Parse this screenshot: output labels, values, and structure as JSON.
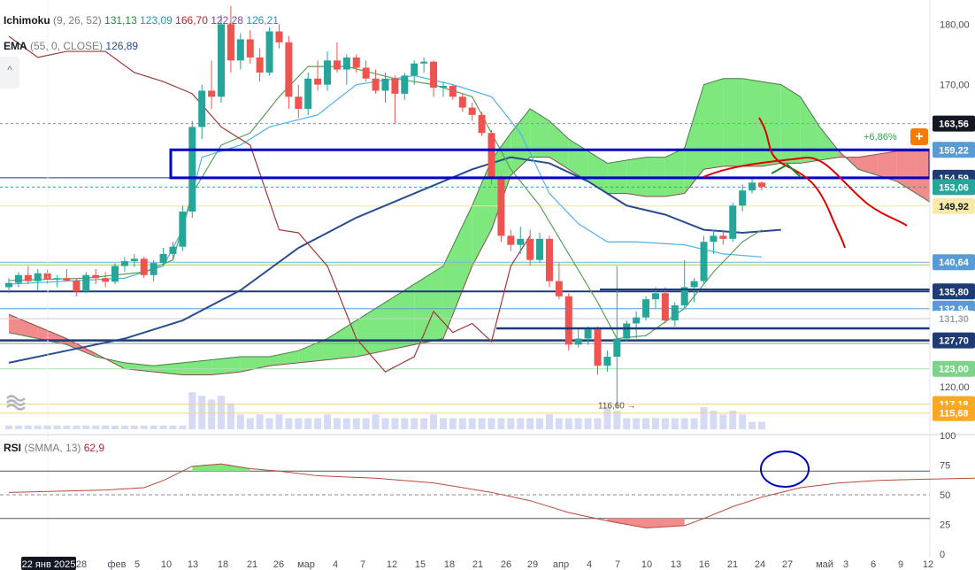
{
  "legend": {
    "ichimoku_name": "Ichimoku",
    "ichimoku_params": "(9, 26, 52)",
    "ichimoku_values": [
      "131,13",
      "123,09",
      "166,70",
      "122,28",
      "126,21"
    ],
    "ema_name": "EMA",
    "ema_params": "(55, 0, CLOSE)",
    "ema_value": "126,89",
    "rsi_name": "RSI",
    "rsi_params": "(SMMA, 13)",
    "rsi_value": "62,9"
  },
  "colors": {
    "up": "#26a69a",
    "down": "#ef5350",
    "cloud_bull": "#7ee87e",
    "cloud_bear": "#f28b8b",
    "ema": "#2a4d8f",
    "annotation_red": "#e00000",
    "annotation_blue": "#0000c8",
    "annotation_green": "#1a8a1a"
  },
  "header": {
    "change_pct": "+6,86%",
    "add_icon": "plus-icon"
  },
  "price_axis": {
    "ticks": [
      "180,00",
      "170,00",
      "120,00"
    ],
    "tag_labels": [
      {
        "text": "163,56",
        "bg": "#131722",
        "fg": "#ffffff"
      },
      {
        "text": "159,22",
        "bg": "#5b9bd5",
        "fg": "#ffffff"
      },
      {
        "text": "154,59",
        "bg": "#1f3b73",
        "fg": "#ffffff"
      },
      {
        "text": "153,06",
        "bg": "#26a69a",
        "fg": "#ffffff"
      },
      {
        "text": "149,92",
        "bg": "#f7e9a8",
        "fg": "#131722"
      },
      {
        "text": "140,64",
        "bg": "#5b9bd5",
        "fg": "#ffffff"
      },
      {
        "text": "135,80",
        "bg": "#1f3b73",
        "fg": "#ffffff"
      },
      {
        "text": "132,94",
        "bg": "#5b9bd5",
        "fg": "#ffffff"
      },
      {
        "text": "131,30",
        "bg": "#ffffff",
        "fg": "#9aa0ad"
      },
      {
        "text": "127,70",
        "bg": "#1f3b73",
        "fg": "#ffffff"
      },
      {
        "text": "123,00",
        "bg": "#7ed38a",
        "fg": "#ffffff"
      },
      {
        "text": "117,18",
        "bg": "#f9a825",
        "fg": "#ffffff"
      },
      {
        "text": "115,68",
        "bg": "#f9a825",
        "fg": "#ffffff"
      }
    ]
  },
  "low_marker": "116,60",
  "rsi_axis": {
    "ticks": [
      "100",
      "75",
      "50",
      "25",
      "0"
    ]
  },
  "time_axis": {
    "labels": [
      "22 янв 2025",
      "28",
      "фев",
      "5",
      "10",
      "13",
      "18",
      "21",
      "26",
      "мар",
      "4",
      "7",
      "12",
      "15",
      "18",
      "21",
      "26",
      "29",
      "апр",
      "4",
      "7",
      "10",
      "13",
      "16",
      "21",
      "24",
      "27",
      "май",
      "3",
      "6",
      "9",
      "12"
    ]
  },
  "chart_data": {
    "type": "candlestick",
    "ylim": [
      113,
      184
    ],
    "rsi_ylim": [
      0,
      100
    ],
    "candles": [
      {
        "o": 136.5,
        "h": 138.0,
        "l": 135.5,
        "c": 137.2
      },
      {
        "o": 137.2,
        "h": 139.0,
        "l": 136.5,
        "c": 138.5
      },
      {
        "o": 138.5,
        "h": 140.0,
        "l": 137.0,
        "c": 137.5
      },
      {
        "o": 137.5,
        "h": 139.5,
        "l": 136.0,
        "c": 138.8
      },
      {
        "o": 138.8,
        "h": 139.5,
        "l": 137.0,
        "c": 137.8
      },
      {
        "o": 137.8,
        "h": 138.5,
        "l": 136.5,
        "c": 138.0
      },
      {
        "o": 138.0,
        "h": 139.5,
        "l": 137.5,
        "c": 137.6
      },
      {
        "o": 137.6,
        "h": 138.0,
        "l": 135.0,
        "c": 135.8
      },
      {
        "o": 135.8,
        "h": 139.0,
        "l": 135.5,
        "c": 138.5
      },
      {
        "o": 138.5,
        "h": 139.5,
        "l": 137.0,
        "c": 138.0
      },
      {
        "o": 138.0,
        "h": 139.0,
        "l": 136.5,
        "c": 137.4
      },
      {
        "o": 137.4,
        "h": 140.5,
        "l": 137.0,
        "c": 140.0
      },
      {
        "o": 140.0,
        "h": 141.5,
        "l": 139.0,
        "c": 140.8
      },
      {
        "o": 140.8,
        "h": 142.0,
        "l": 139.8,
        "c": 141.2
      },
      {
        "o": 141.2,
        "h": 141.5,
        "l": 138.0,
        "c": 138.5
      },
      {
        "o": 138.5,
        "h": 141.0,
        "l": 137.5,
        "c": 140.5
      },
      {
        "o": 140.5,
        "h": 143.0,
        "l": 140.0,
        "c": 142.0
      },
      {
        "o": 142.0,
        "h": 144.0,
        "l": 141.0,
        "c": 143.2
      },
      {
        "o": 143.2,
        "h": 150.0,
        "l": 142.5,
        "c": 149.0
      },
      {
        "o": 149.0,
        "h": 164.0,
        "l": 148.0,
        "c": 163.0
      },
      {
        "o": 163.0,
        "h": 170.0,
        "l": 161.0,
        "c": 169.0
      },
      {
        "o": 169.0,
        "h": 174.0,
        "l": 166.0,
        "c": 168.0
      },
      {
        "o": 168.0,
        "h": 181.5,
        "l": 167.0,
        "c": 180.0
      },
      {
        "o": 180.0,
        "h": 183.0,
        "l": 172.0,
        "c": 174.0
      },
      {
        "o": 174.0,
        "h": 178.5,
        "l": 172.5,
        "c": 177.5
      },
      {
        "o": 177.5,
        "h": 179.0,
        "l": 173.5,
        "c": 174.5
      },
      {
        "o": 174.5,
        "h": 176.0,
        "l": 170.5,
        "c": 172.0
      },
      {
        "o": 172.0,
        "h": 179.5,
        "l": 171.5,
        "c": 178.8
      },
      {
        "o": 178.8,
        "h": 180.0,
        "l": 176.0,
        "c": 177.0
      },
      {
        "o": 177.0,
        "h": 178.0,
        "l": 166.0,
        "c": 168.0
      },
      {
        "o": 168.0,
        "h": 170.0,
        "l": 164.5,
        "c": 166.0
      },
      {
        "o": 166.0,
        "h": 172.0,
        "l": 165.0,
        "c": 171.0
      },
      {
        "o": 171.0,
        "h": 174.0,
        "l": 169.0,
        "c": 170.0
      },
      {
        "o": 170.0,
        "h": 175.5,
        "l": 169.0,
        "c": 174.0
      },
      {
        "o": 174.0,
        "h": 177.0,
        "l": 172.0,
        "c": 172.5
      },
      {
        "o": 172.5,
        "h": 175.0,
        "l": 170.0,
        "c": 174.5
      },
      {
        "o": 174.5,
        "h": 175.0,
        "l": 172.0,
        "c": 172.8
      },
      {
        "o": 172.8,
        "h": 174.0,
        "l": 170.5,
        "c": 171.0
      },
      {
        "o": 171.0,
        "h": 172.5,
        "l": 168.5,
        "c": 169.0
      },
      {
        "o": 169.0,
        "h": 172.0,
        "l": 167.0,
        "c": 171.0
      },
      {
        "o": 171.0,
        "h": 171.5,
        "l": 163.5,
        "c": 168.5
      },
      {
        "o": 168.5,
        "h": 172.0,
        "l": 167.5,
        "c": 171.5
      },
      {
        "o": 171.5,
        "h": 174.0,
        "l": 170.0,
        "c": 173.5
      },
      {
        "o": 173.5,
        "h": 174.5,
        "l": 172.0,
        "c": 173.8
      },
      {
        "o": 173.8,
        "h": 174.0,
        "l": 168.0,
        "c": 169.5
      },
      {
        "o": 169.5,
        "h": 170.5,
        "l": 168.0,
        "c": 169.8
      },
      {
        "o": 169.8,
        "h": 170.0,
        "l": 167.5,
        "c": 168.0
      },
      {
        "o": 168.0,
        "h": 168.5,
        "l": 165.5,
        "c": 166.2
      },
      {
        "o": 166.2,
        "h": 167.0,
        "l": 164.0,
        "c": 165.0
      },
      {
        "o": 165.0,
        "h": 165.5,
        "l": 161.5,
        "c": 162.0
      },
      {
        "o": 162.0,
        "h": 162.5,
        "l": 153.5,
        "c": 154.5
      },
      {
        "o": 154.5,
        "h": 155.0,
        "l": 144.0,
        "c": 145.0
      },
      {
        "o": 145.0,
        "h": 146.0,
        "l": 142.5,
        "c": 143.5
      },
      {
        "o": 143.5,
        "h": 146.5,
        "l": 142.0,
        "c": 144.5
      },
      {
        "o": 144.5,
        "h": 146.0,
        "l": 140.0,
        "c": 141.0
      },
      {
        "o": 141.0,
        "h": 145.5,
        "l": 140.5,
        "c": 144.5
      },
      {
        "o": 144.5,
        "h": 145.0,
        "l": 136.5,
        "c": 137.5
      },
      {
        "o": 137.5,
        "h": 140.5,
        "l": 134.5,
        "c": 135.0
      },
      {
        "o": 135.0,
        "h": 135.5,
        "l": 126.0,
        "c": 127.0
      },
      {
        "o": 127.0,
        "h": 129.5,
        "l": 126.5,
        "c": 128.0
      },
      {
        "o": 128.0,
        "h": 130.0,
        "l": 127.0,
        "c": 129.5
      },
      {
        "o": 129.5,
        "h": 130.0,
        "l": 122.0,
        "c": 123.5
      },
      {
        "o": 123.5,
        "h": 126.0,
        "l": 122.5,
        "c": 125.0
      },
      {
        "o": 125.0,
        "h": 140.0,
        "l": 116.6,
        "c": 128.0
      },
      {
        "o": 128.0,
        "h": 131.0,
        "l": 127.5,
        "c": 130.5
      },
      {
        "o": 130.5,
        "h": 132.5,
        "l": 128.0,
        "c": 131.5
      },
      {
        "o": 131.5,
        "h": 135.0,
        "l": 131.0,
        "c": 134.5
      },
      {
        "o": 134.5,
        "h": 136.5,
        "l": 133.0,
        "c": 135.5
      },
      {
        "o": 135.5,
        "h": 136.5,
        "l": 130.5,
        "c": 131.0
      },
      {
        "o": 131.0,
        "h": 134.0,
        "l": 130.0,
        "c": 133.5
      },
      {
        "o": 133.5,
        "h": 141.0,
        "l": 133.0,
        "c": 136.5
      },
      {
        "o": 136.5,
        "h": 138.0,
        "l": 134.0,
        "c": 137.5
      },
      {
        "o": 137.5,
        "h": 145.0,
        "l": 137.0,
        "c": 144.0
      },
      {
        "o": 144.0,
        "h": 146.0,
        "l": 142.0,
        "c": 145.0
      },
      {
        "o": 145.0,
        "h": 146.0,
        "l": 143.5,
        "c": 144.5
      },
      {
        "o": 144.5,
        "h": 150.5,
        "l": 144.0,
        "c": 150.0
      },
      {
        "o": 150.0,
        "h": 153.5,
        "l": 149.0,
        "c": 152.5
      },
      {
        "o": 152.5,
        "h": 154.5,
        "l": 152.0,
        "c": 153.8
      },
      {
        "o": 153.8,
        "h": 154.0,
        "l": 152.5,
        "c": 153.1
      }
    ],
    "ichimoku_tenkan": [
      [
        0,
        137.6
      ],
      [
        8,
        138.0
      ],
      [
        14,
        139.0
      ],
      [
        17,
        141.0
      ],
      [
        19,
        152.0
      ],
      [
        22,
        160.0
      ],
      [
        25,
        162.0
      ],
      [
        28,
        168.0
      ],
      [
        31,
        173.0
      ],
      [
        35,
        173.0
      ],
      [
        40,
        171.0
      ],
      [
        44,
        170.0
      ],
      [
        48,
        168.0
      ],
      [
        52,
        156.0
      ],
      [
        55,
        150.0
      ],
      [
        58,
        142.0
      ],
      [
        61,
        134.0
      ],
      [
        63,
        128.0
      ],
      [
        66,
        128.5
      ],
      [
        70,
        133.0
      ],
      [
        73,
        139.0
      ],
      [
        76,
        144.0
      ],
      [
        78,
        146.0
      ]
    ],
    "ichimoku_kijun": [
      [
        0,
        137.0
      ],
      [
        12,
        138.0
      ],
      [
        16,
        140.0
      ],
      [
        18,
        146.0
      ],
      [
        20,
        158.0
      ],
      [
        24,
        160.0
      ],
      [
        27,
        163.0
      ],
      [
        32,
        165.0
      ],
      [
        36,
        170.0
      ],
      [
        42,
        171.5
      ],
      [
        46,
        170.0
      ],
      [
        50,
        168.0
      ],
      [
        53,
        162.0
      ],
      [
        56,
        152.0
      ],
      [
        59,
        147.0
      ],
      [
        62,
        144.0
      ],
      [
        65,
        144.0
      ],
      [
        70,
        143.5
      ],
      [
        74,
        142.0
      ],
      [
        78,
        141.5
      ]
    ],
    "ichimoku_chikou": [
      [
        0,
        178.0
      ],
      [
        3,
        174.5
      ],
      [
        6,
        175.5
      ],
      [
        10,
        175.5
      ],
      [
        13,
        172.0
      ],
      [
        16,
        170.5
      ],
      [
        19,
        168.5
      ],
      [
        22,
        163.0
      ],
      [
        25,
        160.0
      ],
      [
        28,
        146.0
      ],
      [
        30,
        145.5
      ],
      [
        33,
        140.0
      ],
      [
        36,
        128.0
      ],
      [
        39,
        122.5
      ],
      [
        42,
        125.0
      ],
      [
        44,
        132.5
      ],
      [
        46,
        129.0
      ],
      [
        48,
        130.5
      ],
      [
        50,
        127.5
      ],
      [
        52,
        140.0
      ],
      [
        54,
        145.0
      ]
    ],
    "cloud": {
      "x": [
        0,
        3,
        6,
        9,
        12,
        15,
        18,
        21,
        24,
        27,
        30,
        33,
        36,
        39,
        42,
        45,
        48,
        50,
        52,
        54,
        56,
        58,
        60,
        62,
        64,
        66,
        68,
        70,
        72,
        74,
        76,
        78,
        80,
        82,
        84,
        86,
        88,
        90,
        92,
        94,
        96,
        98,
        100,
        102,
        104
      ],
      "span_a": [
        129.0,
        128.0,
        127.0,
        125.0,
        124.0,
        123.5,
        124.0,
        124.5,
        125.0,
        125.0,
        126.0,
        128.0,
        131.0,
        134.0,
        137.0,
        140.0,
        150.0,
        157.5,
        162.0,
        166.0,
        164.0,
        161.0,
        159.0,
        157.0,
        157.5,
        158.0,
        158.0,
        159.5,
        170.0,
        171.0,
        171.0,
        170.5,
        170.0,
        168.0,
        163.0,
        159.0,
        156.0,
        155.0,
        154.0,
        152.0,
        150.0,
        146.0,
        140.0,
        137.0,
        136.0
      ],
      "span_b": [
        132.0,
        130.0,
        128.0,
        125.5,
        123.0,
        122.5,
        122.0,
        122.0,
        122.5,
        123.5,
        124.0,
        124.5,
        125.0,
        126.0,
        127.0,
        128.0,
        140.0,
        146.0,
        155.0,
        158.0,
        158.0,
        156.0,
        154.0,
        152.0,
        152.0,
        151.5,
        151.5,
        152.0,
        156.0,
        156.5,
        156.5,
        156.5,
        157.0,
        157.0,
        157.5,
        158.0,
        158.0,
        158.5,
        159.0,
        159.0,
        159.0,
        149.0,
        148.0,
        148.0,
        148.0
      ]
    },
    "ema": [
      [
        0,
        124.0
      ],
      [
        6,
        126.0
      ],
      [
        12,
        128.0
      ],
      [
        18,
        131.0
      ],
      [
        24,
        136.0
      ],
      [
        30,
        143.0
      ],
      [
        36,
        148.0
      ],
      [
        42,
        152.0
      ],
      [
        48,
        156.0
      ],
      [
        52,
        158.0
      ],
      [
        56,
        157.0
      ],
      [
        60,
        154.0
      ],
      [
        64,
        150.0
      ],
      [
        68,
        148.5
      ],
      [
        72,
        146.0
      ],
      [
        76,
        145.5
      ],
      [
        80,
        146.0
      ]
    ],
    "volume": [
      1,
      1,
      1,
      1,
      1,
      1,
      1,
      1,
      1,
      1,
      1,
      1,
      1,
      1,
      1,
      1,
      1,
      1,
      1,
      10,
      9,
      8,
      9,
      7,
      4,
      3,
      4,
      3,
      4,
      3,
      3,
      3,
      3,
      4,
      3,
      3,
      3,
      3,
      4,
      3,
      3,
      3,
      3,
      3,
      4,
      3,
      3,
      3,
      3,
      3,
      3,
      3,
      3,
      3,
      3,
      3,
      4,
      3,
      3,
      3,
      3,
      3,
      6,
      5,
      3,
      3,
      3,
      3,
      3,
      3,
      3,
      3,
      6,
      5,
      4,
      5,
      4,
      2,
      2
    ],
    "rsi": [
      [
        0,
        52
      ],
      [
        5,
        53
      ],
      [
        10,
        54
      ],
      [
        14,
        56
      ],
      [
        16,
        62
      ],
      [
        19,
        74
      ],
      [
        22,
        76
      ],
      [
        25,
        72
      ],
      [
        28,
        70
      ],
      [
        32,
        66
      ],
      [
        38,
        64
      ],
      [
        44,
        60
      ],
      [
        50,
        52
      ],
      [
        54,
        45
      ],
      [
        58,
        35
      ],
      [
        62,
        28
      ],
      [
        66,
        22
      ],
      [
        70,
        24
      ],
      [
        72,
        30
      ],
      [
        75,
        40
      ],
      [
        78,
        48
      ],
      [
        82,
        56
      ],
      [
        86,
        60
      ],
      [
        90,
        62
      ],
      [
        94,
        63
      ],
      [
        100,
        64
      ],
      [
        104,
        65
      ],
      [
        106,
        66
      ],
      [
        108,
        67
      ],
      [
        110,
        66
      ]
    ],
    "rsi_levels": [
      70,
      50,
      30
    ],
    "hlines": [
      {
        "v": 163.56,
        "color": "#8e9299",
        "dash": true
      },
      {
        "v": 154.59,
        "color": "#1f3b73"
      },
      {
        "v": 153.06,
        "color": "#26a69a",
        "dash": true
      },
      {
        "v": 149.92,
        "color": "#f0e3a0"
      },
      {
        "v": 140.64,
        "color": "#6fb3e0"
      },
      {
        "v": 140.2,
        "color": "#a7c957"
      },
      {
        "v": 135.8,
        "color": "#1f3b73",
        "width": 2
      },
      {
        "v": 132.94,
        "color": "#5b9bd5"
      },
      {
        "v": 131.3,
        "color": "#c8cbd2"
      },
      {
        "v": 127.7,
        "color": "#1f3b73",
        "width": 2.5
      },
      {
        "v": 127.2,
        "color": "#8e9299"
      },
      {
        "v": 123.0,
        "color": "#a7e0b0"
      },
      {
        "v": 117.18,
        "color": "#f9d57a"
      },
      {
        "v": 115.68,
        "color": "#f9d57a"
      }
    ],
    "blue_box": [
      154.59,
      159.22
    ]
  }
}
